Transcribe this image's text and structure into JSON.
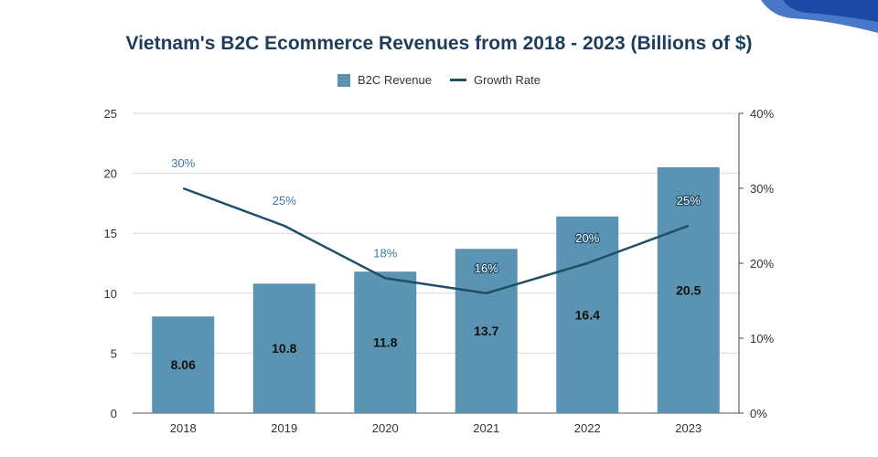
{
  "colors": {
    "bar": "#5b93b2",
    "line": "#1f4e6b",
    "title": "#1d3d5e",
    "growth_label": "#3f7aa3",
    "axis_text": "#333333",
    "grid": "#d9d9d9",
    "deco_light": "#4a78c8",
    "deco_dark": "#1e48a8"
  },
  "legend": {
    "revenue_label": "B2C Revenue",
    "growth_label": "Growth Rate"
  },
  "chart_data": {
    "type": "bar",
    "title": "Vietnam's B2C Ecommerce Revenues from 2018 - 2023 (Billions of $)",
    "categories": [
      "2018",
      "2019",
      "2020",
      "2021",
      "2022",
      "2023"
    ],
    "series": [
      {
        "name": "B2C Revenue",
        "type": "bar",
        "axis": "left",
        "values": [
          8.06,
          10.8,
          11.8,
          13.7,
          16.4,
          20.5
        ],
        "labels": [
          "8.06",
          "10.8",
          "11.8",
          "13.7",
          "16.4",
          "20.5"
        ]
      },
      {
        "name": "Growth Rate",
        "type": "line",
        "axis": "right",
        "values": [
          30,
          25,
          18,
          16,
          20,
          25
        ],
        "labels": [
          "30%",
          "25%",
          "18%",
          "16%",
          "20%",
          "25%"
        ]
      }
    ],
    "ylim": [
      0,
      25
    ],
    "yticks": [
      "0",
      "5",
      "10",
      "15",
      "20",
      "25"
    ],
    "y2lim": [
      0,
      40
    ],
    "y2ticks": [
      "0%",
      "10%",
      "20%",
      "30%",
      "40%"
    ],
    "xlabel": "",
    "ylabel": "",
    "legend_position": "top"
  }
}
